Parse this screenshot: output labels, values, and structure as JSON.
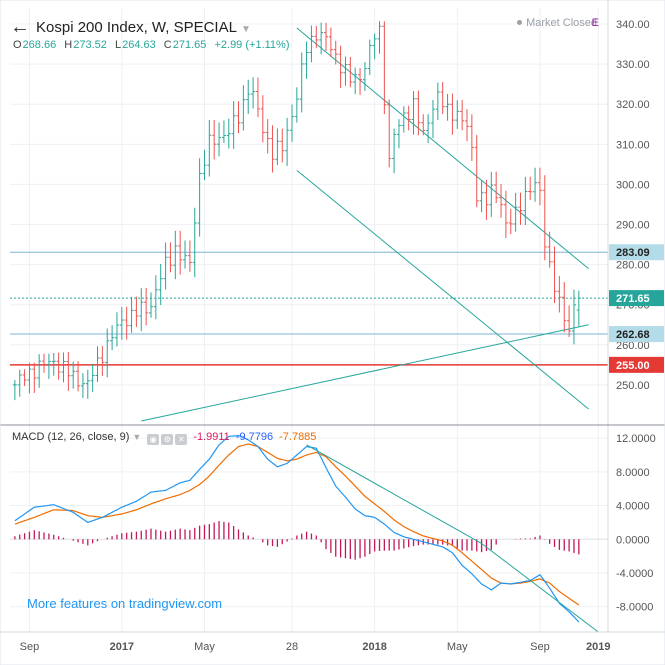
{
  "header": {
    "title": "Kospi 200 Index, W, SPECIAL",
    "ohlc": {
      "o": "268.66",
      "h": "273.52",
      "l": "264.63",
      "c": "271.65",
      "chg": "+2.99 (+1.11%)"
    },
    "market_status": "Market Closed",
    "market_flag": "E"
  },
  "macd": {
    "label": "MACD (12, 26, close, 9)",
    "hist_value": "-1.9911",
    "macd_value": "-9.7796",
    "signal_value": "-7.7885"
  },
  "promo_text": "More features on tradingview.com",
  "colors": {
    "up": "#26a69a",
    "down": "#ef5350",
    "trend": "#26a69a",
    "level_line": "#7fb3d5",
    "support_red": "#e53935",
    "macd_line": "#2196f3",
    "signal_line": "#ef6c00",
    "histogram": "#c2185b"
  },
  "chart_data": [
    {
      "type": "candlestick",
      "title": "Kospi 200 Index, W, SPECIAL",
      "ylim": [
        240,
        344
      ],
      "yticks": [
        "340.00",
        "330.00",
        "320.00",
        "310.00",
        "300.00",
        "290.00",
        "280.00",
        "270.00",
        "260.00",
        "250.00"
      ],
      "xticks": [
        "Sep",
        "2017",
        "May",
        "28",
        "2018",
        "May",
        "Sep",
        "2019"
      ],
      "price_labels": [
        {
          "value": 283.09,
          "text": "283.09",
          "style": "level"
        },
        {
          "value": 271.65,
          "text": "271.65",
          "style": "last"
        },
        {
          "value": 262.68,
          "text": "262.68",
          "style": "level"
        },
        {
          "value": 255.0,
          "text": "255.00",
          "style": "support"
        }
      ],
      "horizontal_lines": [
        283.09,
        262.68,
        255.0
      ],
      "last_price_line": 271.65,
      "trendlines": [
        {
          "name": "upper-channel",
          "from": [
            58,
            339
          ],
          "to": [
            118,
            279
          ]
        },
        {
          "name": "lower-channel",
          "from": [
            58,
            303.5
          ],
          "to": [
            118,
            244
          ]
        },
        {
          "name": "rising-support",
          "from": [
            26,
            241
          ],
          "to": [
            118,
            265
          ]
        }
      ],
      "x_range": [
        -1,
        122
      ],
      "anchor_points": [
        [
          0,
          250
        ],
        [
          4,
          254
        ],
        [
          8,
          256
        ],
        [
          12,
          252
        ],
        [
          15,
          250
        ],
        [
          18,
          258
        ],
        [
          22,
          266
        ],
        [
          25,
          268
        ],
        [
          28,
          270
        ],
        [
          31,
          280
        ],
        [
          33,
          284
        ],
        [
          34,
          282
        ],
        [
          36,
          280
        ],
        [
          37,
          292
        ],
        [
          38,
          302
        ],
        [
          40,
          310
        ],
        [
          42,
          312
        ],
        [
          44,
          313
        ],
        [
          46,
          317
        ],
        [
          48,
          324
        ],
        [
          49,
          322
        ],
        [
          51,
          314
        ],
        [
          53,
          308
        ],
        [
          55,
          309
        ],
        [
          58,
          322
        ],
        [
          60,
          334
        ],
        [
          62,
          338
        ],
        [
          64,
          336
        ],
        [
          66,
          332
        ],
        [
          67,
          330
        ],
        [
          69,
          326
        ],
        [
          71,
          327
        ],
        [
          73,
          333
        ],
        [
          74,
          337
        ],
        [
          75,
          338
        ],
        [
          76,
          322
        ],
        [
          77,
          306
        ],
        [
          78,
          312
        ],
        [
          80,
          317
        ],
        [
          82,
          320
        ],
        [
          84,
          312
        ],
        [
          86,
          320
        ],
        [
          87,
          322
        ],
        [
          89,
          318
        ],
        [
          91,
          318
        ],
        [
          93,
          314
        ],
        [
          94,
          308
        ],
        [
          95,
          298
        ],
        [
          97,
          296
        ],
        [
          98,
          298
        ],
        [
          100,
          296
        ],
        [
          101,
          290
        ],
        [
          103,
          292
        ],
        [
          105,
          298
        ],
        [
          107,
          300
        ],
        [
          108,
          297
        ],
        [
          109,
          286
        ],
        [
          110,
          280
        ],
        [
          111,
          275
        ],
        [
          112,
          270
        ],
        [
          113,
          266
        ],
        [
          114,
          264
        ],
        [
          115,
          270
        ],
        [
          116,
          272
        ]
      ]
    },
    {
      "type": "macd",
      "title": "MACD (12, 26, close, 9)",
      "ylim": [
        -11,
        13.2
      ],
      "yticks": [
        "12.0000",
        "8.0000",
        "4.0000",
        "0.0000",
        "-4.0000",
        "-8.0000"
      ],
      "series": [
        {
          "name": "MACD",
          "anchor_points": [
            [
              0,
              2.2
            ],
            [
              4,
              3.8
            ],
            [
              8,
              4.1
            ],
            [
              12,
              3.2
            ],
            [
              15,
              2
            ],
            [
              18,
              2.6
            ],
            [
              22,
              3.8
            ],
            [
              25,
              4.5
            ],
            [
              28,
              5.6
            ],
            [
              31,
              5.8
            ],
            [
              34,
              6.7
            ],
            [
              36,
              7
            ],
            [
              38,
              8.3
            ],
            [
              40,
              9.5
            ],
            [
              42,
              11.2
            ],
            [
              44,
              12.2
            ],
            [
              46,
              12.3
            ],
            [
              48,
              11.8
            ],
            [
              50,
              11
            ],
            [
              52,
              9.5
            ],
            [
              54,
              8.6
            ],
            [
              56,
              9
            ],
            [
              58,
              10
            ],
            [
              60,
              11
            ],
            [
              62,
              10.8
            ],
            [
              64,
              8.5
            ],
            [
              66,
              6.3
            ],
            [
              68,
              5
            ],
            [
              70,
              3.6
            ],
            [
              72,
              2.8
            ],
            [
              74,
              2.6
            ],
            [
              76,
              1.8
            ],
            [
              78,
              0.8
            ],
            [
              80,
              0.3
            ],
            [
              82,
              0
            ],
            [
              84,
              -0.3
            ],
            [
              86,
              -0.6
            ],
            [
              88,
              -0.9
            ],
            [
              90,
              -1.6
            ],
            [
              92,
              -3.1
            ],
            [
              94,
              -4.1
            ],
            [
              96,
              -5.3
            ],
            [
              98,
              -6
            ],
            [
              100,
              -5.2
            ],
            [
              102,
              -5.3
            ],
            [
              104,
              -5.1
            ],
            [
              106,
              -4.9
            ],
            [
              108,
              -4.2
            ],
            [
              110,
              -5.8
            ],
            [
              112,
              -7.6
            ],
            [
              114,
              -8.6
            ],
            [
              116,
              -9.8
            ]
          ]
        },
        {
          "name": "Signal",
          "anchor_points": [
            [
              0,
              1.8
            ],
            [
              4,
              2.6
            ],
            [
              8,
              3.5
            ],
            [
              12,
              3.4
            ],
            [
              15,
              2.8
            ],
            [
              18,
              2.6
            ],
            [
              22,
              3
            ],
            [
              25,
              3.5
            ],
            [
              28,
              4.2
            ],
            [
              31,
              4.8
            ],
            [
              34,
              5.3
            ],
            [
              36,
              5.8
            ],
            [
              38,
              6.5
            ],
            [
              40,
              7.5
            ],
            [
              42,
              8.8
            ],
            [
              44,
              10
            ],
            [
              46,
              11
            ],
            [
              48,
              11.3
            ],
            [
              50,
              11
            ],
            [
              52,
              10.3
            ],
            [
              54,
              9.6
            ],
            [
              56,
              9.3
            ],
            [
              58,
              9.5
            ],
            [
              60,
              10
            ],
            [
              62,
              10.3
            ],
            [
              64,
              9.8
            ],
            [
              66,
              8.6
            ],
            [
              68,
              7.5
            ],
            [
              70,
              6.3
            ],
            [
              72,
              5.1
            ],
            [
              74,
              4.2
            ],
            [
              76,
              3.3
            ],
            [
              78,
              2.3
            ],
            [
              80,
              1.5
            ],
            [
              82,
              0.9
            ],
            [
              84,
              0.4
            ],
            [
              86,
              0.1
            ],
            [
              88,
              -0.2
            ],
            [
              90,
              -0.7
            ],
            [
              92,
              -1.6
            ],
            [
              94,
              -2.6
            ],
            [
              96,
              -3.6
            ],
            [
              98,
              -4.6
            ],
            [
              100,
              -5.2
            ],
            [
              102,
              -5.3
            ],
            [
              104,
              -5.2
            ],
            [
              106,
              -5
            ],
            [
              108,
              -4.7
            ],
            [
              110,
              -5.2
            ],
            [
              112,
              -6.2
            ],
            [
              114,
              -7
            ],
            [
              116,
              -7.8
            ]
          ]
        },
        {
          "name": "Histogram"
        }
      ]
    }
  ]
}
